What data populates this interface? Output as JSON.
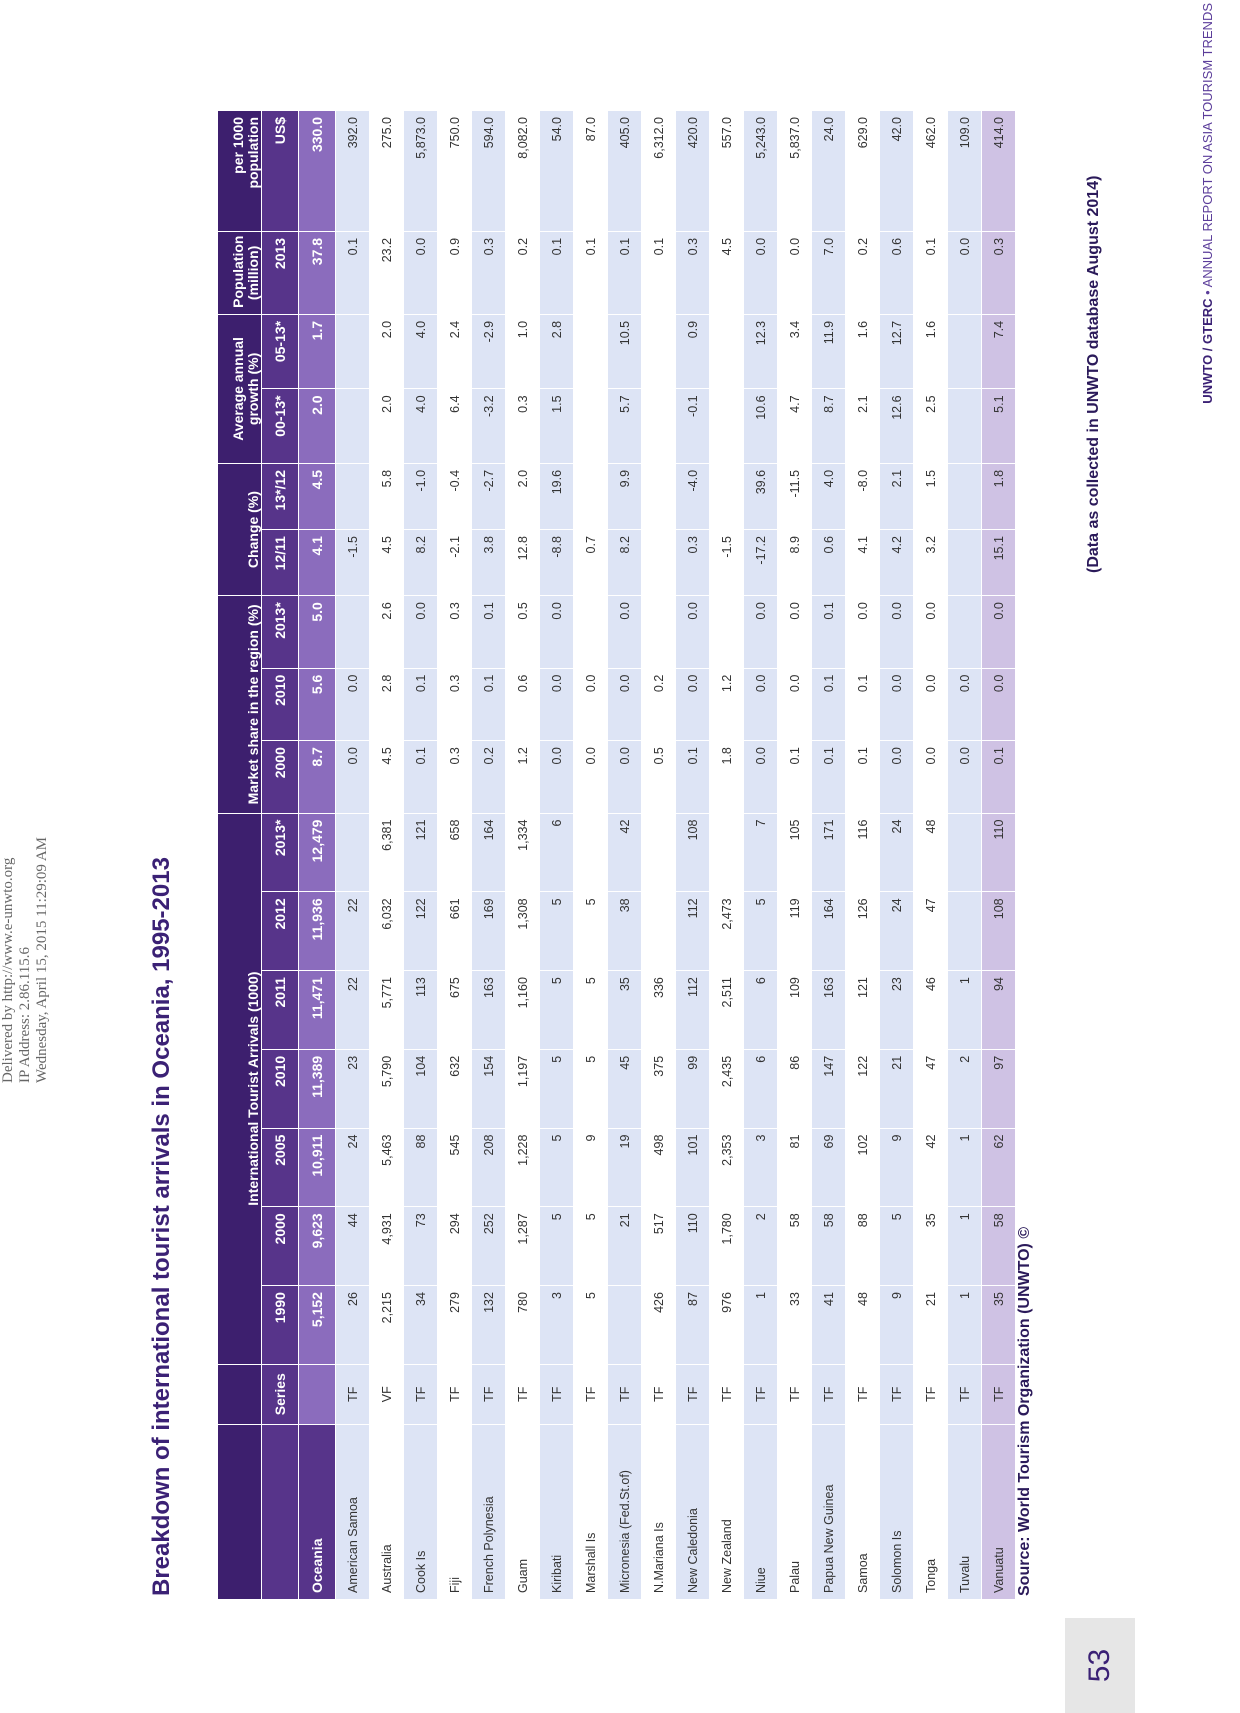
{
  "watermark": {
    "line1": "Delivered by http://www.e-unwto.org",
    "line2": "IP Address: 2.86.115.6",
    "line3": "Wednesday, April 15, 2015 11:29:09 AM"
  },
  "title": "Breakdown of international tourist arrivals in Oceania, 1995-2013",
  "table": {
    "group_headers": {
      "arrivals": "International Tourist Arrivals (1000)",
      "market_share": "Market share in the region (%)",
      "change": "Change (%)",
      "growth": "Average annual growth (%)",
      "population": "Population (million)",
      "per1000": "per 1000 population"
    },
    "columns": [
      "Series",
      "1990",
      "2000",
      "2005",
      "2010",
      "2011",
      "2012",
      "2013*",
      "2000",
      "2010",
      "2013*",
      "12/11",
      "13*/12",
      "00-13*",
      "05-13*",
      "2013",
      "US$"
    ],
    "total": {
      "name": "Oceania",
      "cells": [
        "",
        "5,152",
        "9,623",
        "10,911",
        "11,389",
        "11,471",
        "11,936",
        "12,479",
        "8.7",
        "5.6",
        "5.0",
        "4.1",
        "4.5",
        "2.0",
        "1.7",
        "37.8",
        "330.0"
      ]
    },
    "rows": [
      {
        "name": "American Samoa",
        "cells": [
          "TF",
          "26",
          "44",
          "24",
          "23",
          "22",
          "22",
          "",
          "0.0",
          "0.0",
          "",
          "-1.5",
          "",
          "",
          "",
          "0.1",
          "392.0"
        ]
      },
      {
        "name": "Australia",
        "cells": [
          "VF",
          "2,215",
          "4,931",
          "5,463",
          "5,790",
          "5,771",
          "6,032",
          "6,381",
          "4.5",
          "2.8",
          "2.6",
          "4.5",
          "5.8",
          "2.0",
          "2.0",
          "23.2",
          "275.0"
        ]
      },
      {
        "name": "Cook Is",
        "cells": [
          "TF",
          "34",
          "73",
          "88",
          "104",
          "113",
          "122",
          "121",
          "0.1",
          "0.1",
          "0.0",
          "8.2",
          "-1.0",
          "4.0",
          "4.0",
          "0.0",
          "5,873.0"
        ]
      },
      {
        "name": "Fiji",
        "cells": [
          "TF",
          "279",
          "294",
          "545",
          "632",
          "675",
          "661",
          "658",
          "0.3",
          "0.3",
          "0.3",
          "-2.1",
          "-0.4",
          "6.4",
          "2.4",
          "0.9",
          "750.0"
        ]
      },
      {
        "name": "French Polynesia",
        "cells": [
          "TF",
          "132",
          "252",
          "208",
          "154",
          "163",
          "169",
          "164",
          "0.2",
          "0.1",
          "0.1",
          "3.8",
          "-2.7",
          "-3.2",
          "-2.9",
          "0.3",
          "594.0"
        ]
      },
      {
        "name": "Guam",
        "cells": [
          "TF",
          "780",
          "1,287",
          "1,228",
          "1,197",
          "1,160",
          "1,308",
          "1,334",
          "1.2",
          "0.6",
          "0.5",
          "12.8",
          "2.0",
          "0.3",
          "1.0",
          "0.2",
          "8,082.0"
        ]
      },
      {
        "name": "Kiribati",
        "cells": [
          "TF",
          "3",
          "5",
          "5",
          "5",
          "5",
          "5",
          "6",
          "0.0",
          "0.0",
          "0.0",
          "-8.8",
          "19.6",
          "1.5",
          "2.8",
          "0.1",
          "54.0"
        ]
      },
      {
        "name": "Marshall Is",
        "cells": [
          "TF",
          "5",
          "5",
          "9",
          "5",
          "5",
          "5",
          "",
          "0.0",
          "0.0",
          "",
          "0.7",
          "",
          "",
          "",
          "0.1",
          "87.0"
        ]
      },
      {
        "name": "Micronesia (Fed.St.of)",
        "cells": [
          "TF",
          "",
          "21",
          "19",
          "45",
          "35",
          "38",
          "42",
          "0.0",
          "0.0",
          "0.0",
          "8.2",
          "9.9",
          "5.7",
          "10.5",
          "0.1",
          "405.0"
        ]
      },
      {
        "name": "N.Mariana Is",
        "cells": [
          "TF",
          "426",
          "517",
          "498",
          "375",
          "336",
          "",
          "",
          "0.5",
          "0.2",
          "",
          "",
          "",
          "",
          "",
          "0.1",
          "6,312.0"
        ]
      },
      {
        "name": "New Caledonia",
        "cells": [
          "TF",
          "87",
          "110",
          "101",
          "99",
          "112",
          "112",
          "108",
          "0.1",
          "0.0",
          "0.0",
          "0.3",
          "-4.0",
          "-0.1",
          "0.9",
          "0.3",
          "420.0"
        ]
      },
      {
        "name": "New Zealand",
        "cells": [
          "TF",
          "976",
          "1,780",
          "2,353",
          "2,435",
          "2,511",
          "2,473",
          "",
          "1.8",
          "1.2",
          "",
          "-1.5",
          "",
          "",
          "",
          "4.5",
          "557.0"
        ]
      },
      {
        "name": "Niue",
        "cells": [
          "TF",
          "1",
          "2",
          "3",
          "6",
          "6",
          "5",
          "7",
          "0.0",
          "0.0",
          "0.0",
          "-17.2",
          "39.6",
          "10.6",
          "12.3",
          "0.0",
          "5,243.0"
        ]
      },
      {
        "name": "Palau",
        "cells": [
          "TF",
          "33",
          "58",
          "81",
          "86",
          "109",
          "119",
          "105",
          "0.1",
          "0.0",
          "0.0",
          "8.9",
          "-11.5",
          "4.7",
          "3.4",
          "0.0",
          "5,837.0"
        ]
      },
      {
        "name": "Papua New Guinea",
        "cells": [
          "TF",
          "41",
          "58",
          "69",
          "147",
          "163",
          "164",
          "171",
          "0.1",
          "0.1",
          "0.1",
          "0.6",
          "4.0",
          "8.7",
          "11.9",
          "7.0",
          "24.0"
        ]
      },
      {
        "name": "Samoa",
        "cells": [
          "TF",
          "48",
          "88",
          "102",
          "122",
          "121",
          "126",
          "116",
          "0.1",
          "0.1",
          "0.0",
          "4.1",
          "-8.0",
          "2.1",
          "1.6",
          "0.2",
          "629.0"
        ]
      },
      {
        "name": "Solomon Is",
        "cells": [
          "TF",
          "9",
          "5",
          "9",
          "21",
          "23",
          "24",
          "24",
          "0.0",
          "0.0",
          "0.0",
          "4.2",
          "2.1",
          "12.6",
          "12.7",
          "0.6",
          "42.0"
        ]
      },
      {
        "name": "Tonga",
        "cells": [
          "TF",
          "21",
          "35",
          "42",
          "47",
          "46",
          "47",
          "48",
          "0.0",
          "0.0",
          "0.0",
          "3.2",
          "1.5",
          "2.5",
          "1.6",
          "0.1",
          "462.0"
        ]
      },
      {
        "name": "Tuvalu",
        "cells": [
          "TF",
          "1",
          "1",
          "1",
          "2",
          "1",
          "",
          "",
          "0.0",
          "0.0",
          "",
          "",
          "",
          "",
          "",
          "0.0",
          "109.0"
        ]
      },
      {
        "name": "Vanuatu",
        "cells": [
          "TF",
          "35",
          "58",
          "62",
          "97",
          "94",
          "108",
          "110",
          "0.1",
          "0.0",
          "0.0",
          "15.1",
          "1.8",
          "5.1",
          "7.4",
          "0.3",
          "414.0"
        ]
      }
    ]
  },
  "source": "Source: World Tourism Organization (UNWTO) ©",
  "data_note": "(Data as collected in UNWTO database August 2014)",
  "footer": {
    "org": "UNWTO / GTERC",
    "bullet": "•",
    "report": "ANNUAL REPORT ON ASIA TOURISM TRENDS",
    "page_number": "53"
  }
}
